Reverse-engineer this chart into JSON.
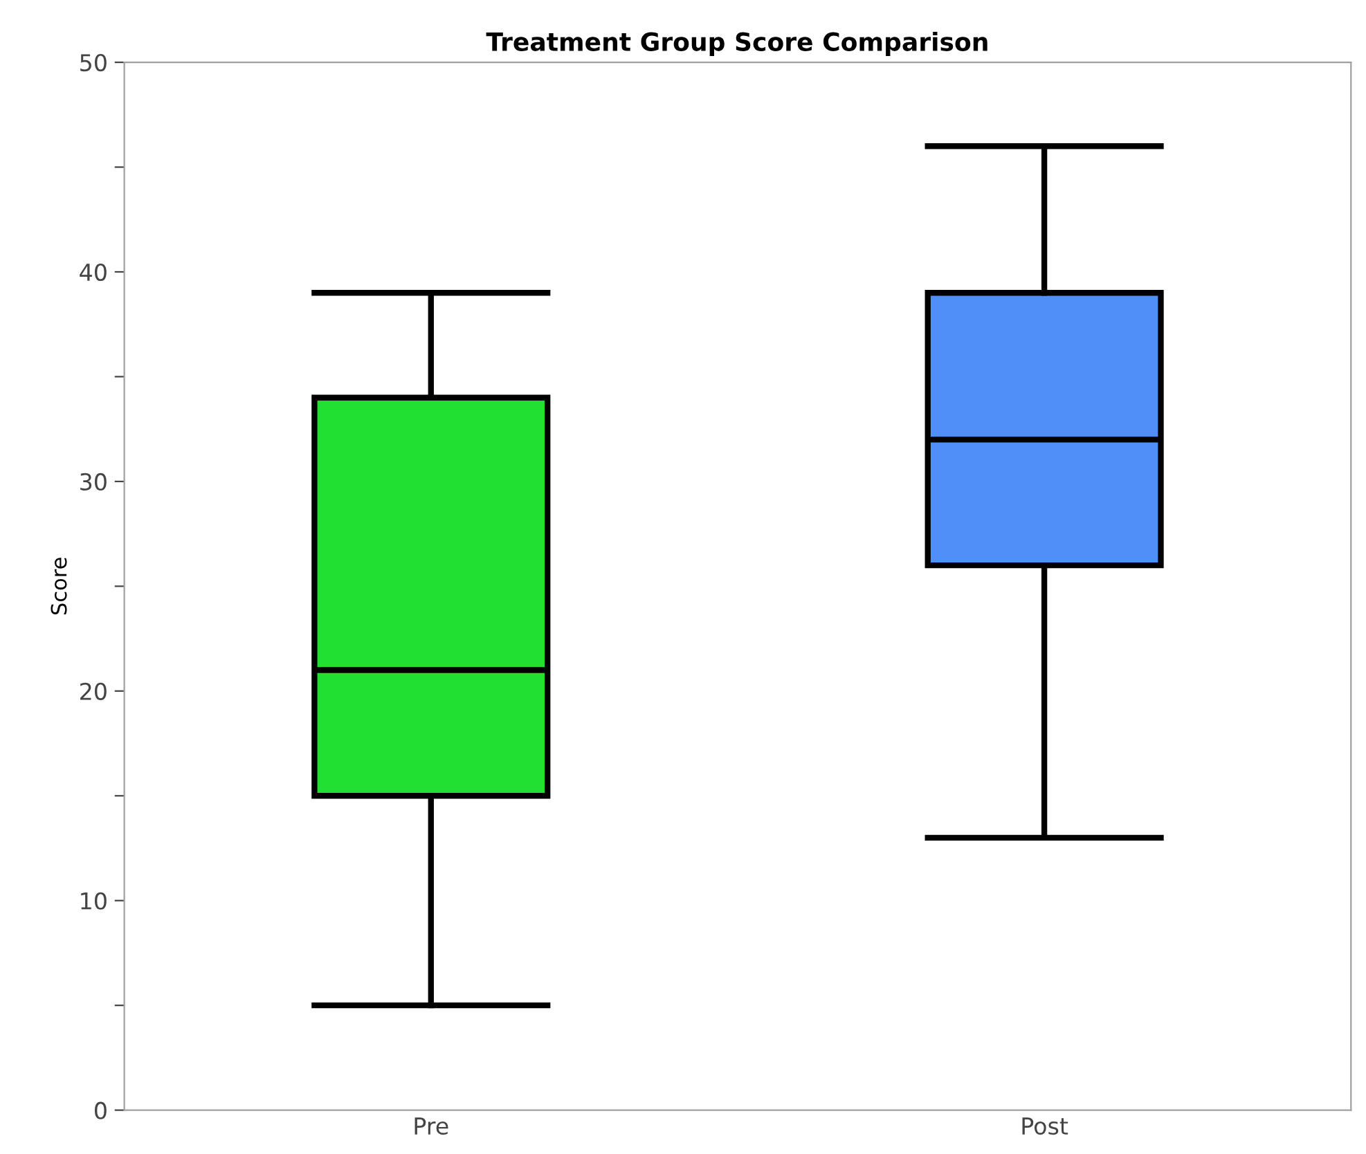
{
  "chart_data": {
    "type": "box",
    "title": "Treatment Group Score Comparison",
    "ylabel": "Score",
    "categories": [
      "Pre",
      "Post"
    ],
    "colors": [
      "#22e032",
      "#4f8ff7"
    ],
    "boxes": [
      {
        "low": 5,
        "q1": 15,
        "median": 21,
        "q3": 34,
        "high": 39
      },
      {
        "low": 13,
        "q1": 26,
        "median": 32,
        "q3": 39,
        "high": 46
      }
    ],
    "ylim": [
      0,
      50
    ],
    "yticks": [
      0,
      {
        "value": 5,
        "label": null
      },
      10,
      {
        "value": 15,
        "label": null
      },
      20,
      {
        "value": 25,
        "label": null
      },
      30,
      {
        "value": 35,
        "label": null
      },
      40,
      {
        "value": 45,
        "label": null
      },
      50
    ],
    "grid": false
  }
}
